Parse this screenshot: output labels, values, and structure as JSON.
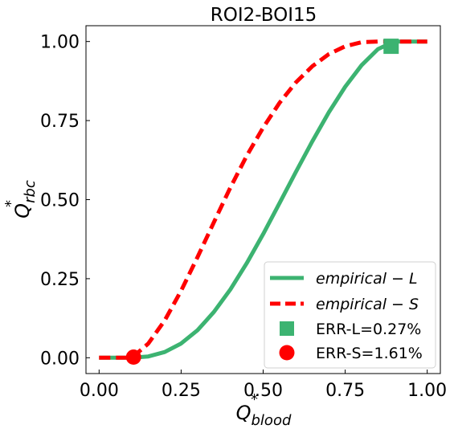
{
  "chart_data": {
    "type": "line",
    "title": "ROI2-BOI15",
    "xlabel": {
      "main": "Q",
      "sup": "*",
      "sub": "blood"
    },
    "ylabel": {
      "main": "Q",
      "sup": "*",
      "sub": "rbc"
    },
    "xlim": [
      -0.04,
      1.04
    ],
    "ylim": [
      -0.05,
      1.05
    ],
    "xticks": [
      0.0,
      0.25,
      0.5,
      0.75,
      1.0
    ],
    "xtick_labels": [
      "0.00",
      "0.25",
      "0.50",
      "0.75",
      "1.00"
    ],
    "yticks": [
      0.0,
      0.25,
      0.5,
      0.75,
      1.0
    ],
    "ytick_labels": [
      "0.00",
      "0.25",
      "0.50",
      "0.75",
      "1.00"
    ],
    "grid": false,
    "legend_position": "lower-right",
    "series": [
      {
        "name": "empirical-L",
        "legend_label": "empirical − L",
        "style": "solid",
        "color": "#3cb371",
        "x": [
          0.0,
          0.05,
          0.1,
          0.15,
          0.2,
          0.25,
          0.3,
          0.35,
          0.4,
          0.45,
          0.5,
          0.55,
          0.6,
          0.65,
          0.7,
          0.75,
          0.8,
          0.85,
          0.9,
          0.95,
          1.0
        ],
        "y": [
          0.0,
          0.0,
          0.0,
          0.004,
          0.018,
          0.045,
          0.087,
          0.145,
          0.216,
          0.299,
          0.391,
          0.489,
          0.588,
          0.685,
          0.776,
          0.857,
          0.925,
          0.976,
          1.0,
          1.0,
          1.0
        ]
      },
      {
        "name": "empirical-S",
        "legend_label": "empirical − S",
        "style": "dashed",
        "color": "#ff0000",
        "x": [
          0.0,
          0.05,
          0.1,
          0.15,
          0.2,
          0.25,
          0.3,
          0.35,
          0.4,
          0.45,
          0.5,
          0.55,
          0.6,
          0.65,
          0.7,
          0.75,
          0.8,
          0.85,
          0.9,
          0.95,
          1.0
        ],
        "y": [
          0.0,
          0.0,
          0.0,
          0.045,
          0.118,
          0.212,
          0.318,
          0.429,
          0.538,
          0.639,
          0.728,
          0.806,
          0.871,
          0.922,
          0.96,
          0.985,
          0.998,
          1.0,
          1.0,
          1.0,
          1.0
        ]
      }
    ],
    "markers": [
      {
        "name": "ERR-L",
        "label": "ERR-L=0.27%",
        "shape": "square",
        "color": "#3cb371",
        "x": 0.89,
        "y": 0.985
      },
      {
        "name": "ERR-S",
        "label": "ERR-S=1.61%",
        "shape": "circle",
        "color": "#ff0000",
        "x": 0.105,
        "y": 0.002
      }
    ]
  }
}
